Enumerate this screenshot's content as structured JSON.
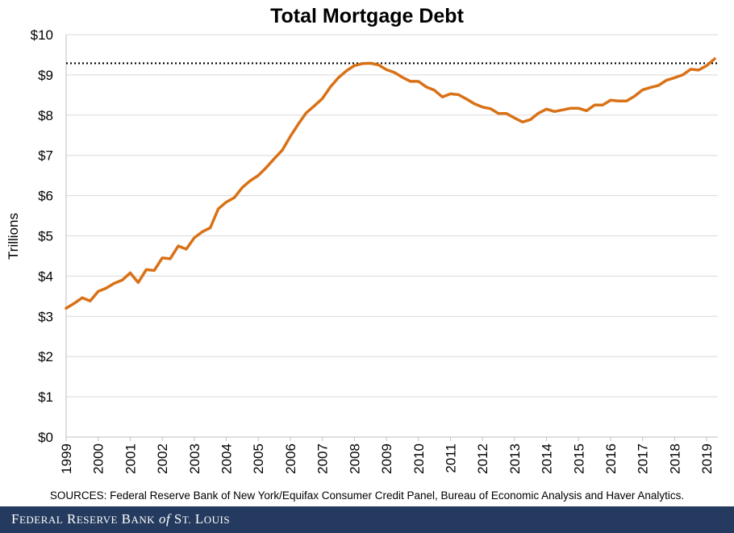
{
  "chart_data": {
    "type": "line",
    "title": "Total Mortgage Debt",
    "ylabel": "Trillions",
    "xlabel": "",
    "ylim": [
      0,
      10
    ],
    "xlim": [
      1999.0,
      2019.35
    ],
    "y_ticks": [
      "$0",
      "$1",
      "$2",
      "$3",
      "$4",
      "$5",
      "$6",
      "$7",
      "$8",
      "$9",
      "$10"
    ],
    "x_ticks": [
      "1999",
      "2000",
      "2001",
      "2002",
      "2003",
      "2004",
      "2005",
      "2006",
      "2007",
      "2008",
      "2009",
      "2010",
      "2011",
      "2012",
      "2013",
      "2014",
      "2015",
      "2016",
      "2017",
      "2018",
      "2019"
    ],
    "grid": "horizontal",
    "reference_line": {
      "y": 9.29,
      "style": "dotted"
    },
    "series": [
      {
        "color": "#d97116",
        "x": [
          1999.0,
          1999.25,
          1999.5,
          1999.75,
          2000.0,
          2000.25,
          2000.5,
          2000.75,
          2001.0,
          2001.25,
          2001.5,
          2001.75,
          2002.0,
          2002.25,
          2002.5,
          2002.75,
          2003.0,
          2003.25,
          2003.5,
          2003.75,
          2004.0,
          2004.25,
          2004.5,
          2004.75,
          2005.0,
          2005.25,
          2005.5,
          2005.75,
          2006.0,
          2006.25,
          2006.5,
          2006.75,
          2007.0,
          2007.25,
          2007.5,
          2007.75,
          2008.0,
          2008.25,
          2008.5,
          2008.75,
          2009.0,
          2009.25,
          2009.5,
          2009.75,
          2010.0,
          2010.25,
          2010.5,
          2010.75,
          2011.0,
          2011.25,
          2011.5,
          2011.75,
          2012.0,
          2012.25,
          2012.5,
          2012.75,
          2013.0,
          2013.25,
          2013.5,
          2013.75,
          2014.0,
          2014.25,
          2014.5,
          2014.75,
          2015.0,
          2015.25,
          2015.5,
          2015.75,
          2016.0,
          2016.25,
          2016.5,
          2016.75,
          2017.0,
          2017.25,
          2017.5,
          2017.75,
          2018.0,
          2018.25,
          2018.5,
          2018.75,
          2019.0,
          2019.25
        ],
        "y": [
          3.2,
          3.32,
          3.46,
          3.38,
          3.62,
          3.7,
          3.82,
          3.9,
          4.08,
          3.84,
          4.16,
          4.14,
          4.45,
          4.43,
          4.75,
          4.67,
          4.95,
          5.1,
          5.2,
          5.67,
          5.84,
          5.95,
          6.2,
          6.37,
          6.5,
          6.7,
          6.92,
          7.13,
          7.47,
          7.78,
          8.06,
          8.23,
          8.41,
          8.7,
          8.93,
          9.1,
          9.23,
          9.28,
          9.29,
          9.25,
          9.13,
          9.06,
          8.94,
          8.84,
          8.84,
          8.7,
          8.62,
          8.45,
          8.53,
          8.51,
          8.4,
          8.28,
          8.2,
          8.16,
          8.04,
          8.04,
          7.93,
          7.83,
          7.89,
          8.05,
          8.15,
          8.09,
          8.13,
          8.17,
          8.17,
          8.11,
          8.25,
          8.25,
          8.37,
          8.35,
          8.35,
          8.47,
          8.63,
          8.69,
          8.74,
          8.87,
          8.93,
          9.0,
          9.14,
          9.12,
          9.23,
          9.4
        ]
      }
    ]
  },
  "sources": "SOURCES: Federal Reserve Bank of New York/Equifax Consumer Credit Panel, Bureau of Economic Analysis and Haver Analytics.",
  "footer": {
    "line": "FEDERAL RESERVE BANK of ST. LOUIS",
    "brand_color": "#243a5e"
  }
}
